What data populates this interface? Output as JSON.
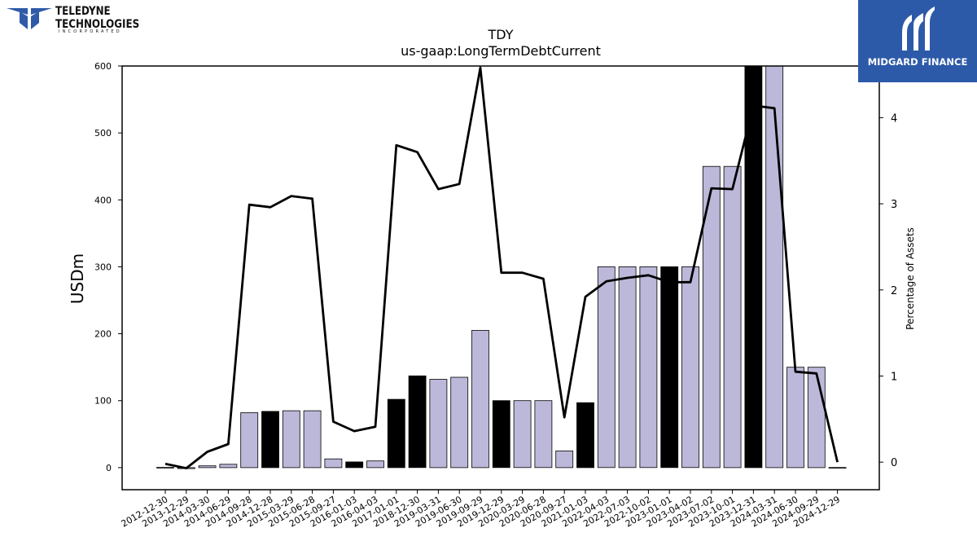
{
  "logos": {
    "teledyne_line1": "TELEDYNE",
    "teledyne_line2": "TECHNOLOGIES",
    "teledyne_sub": "INCORPORATED",
    "midgard_text": "MIDGARD FINANCE"
  },
  "chart_data": {
    "type": "bar",
    "title": "TDY",
    "subtitle": "us-gaap:LongTermDebtCurrent",
    "ylabel": "USDm",
    "y2label": "Percentage of Assets",
    "ylim": [
      -33,
      600
    ],
    "y2lim": [
      -0.32,
      4.6
    ],
    "yticks": [
      0,
      100,
      200,
      300,
      400,
      500,
      600
    ],
    "y2ticks": [
      0,
      1,
      2,
      3,
      4
    ],
    "grid": false,
    "categories": [
      "2012-12-30",
      "2013-12-29",
      "2014-03-30",
      "2014-06-29",
      "2014-09-28",
      "2014-12-28",
      "2015-03-29",
      "2015-06-28",
      "2015-09-27",
      "2016-01-03",
      "2016-04-03",
      "2017-01-01",
      "2018-12-30",
      "2019-03-31",
      "2019-06-30",
      "2019-09-29",
      "2019-12-29",
      "2020-03-29",
      "2020-06-28",
      "2020-09-27",
      "2021-01-03",
      "2022-04-03",
      "2022-07-03",
      "2022-10-02",
      "2023-01-01",
      "2023-04-02",
      "2023-07-02",
      "2023-10-01",
      "2023-12-31",
      "2024-03-31",
      "2024-06-30",
      "2024-09-29",
      "2024-12-29"
    ],
    "series": [
      {
        "type": "bar",
        "axis": "left",
        "values": [
          0.3,
          -1.5,
          2.7,
          5.0,
          82.0,
          84.0,
          85.0,
          85.0,
          13.0,
          8.5,
          10.0,
          102.0,
          137.0,
          132.0,
          135.0,
          205.0,
          100.0,
          100.0,
          100.0,
          25.0,
          97.0,
          300.0,
          300.0,
          300.0,
          300.0,
          300.0,
          450.0,
          450.0,
          600.0,
          600.0,
          150.0,
          150.0,
          0.2
        ],
        "highlight": [
          false,
          false,
          false,
          false,
          false,
          true,
          false,
          false,
          false,
          true,
          false,
          true,
          true,
          false,
          false,
          false,
          true,
          false,
          false,
          false,
          true,
          false,
          false,
          false,
          true,
          false,
          false,
          false,
          true,
          false,
          false,
          false,
          false
        ]
      },
      {
        "type": "line",
        "axis": "right",
        "values": [
          -0.02,
          -0.07,
          0.12,
          0.21,
          2.99,
          2.96,
          3.09,
          3.06,
          0.47,
          0.36,
          0.41,
          3.68,
          3.6,
          3.17,
          3.23,
          4.58,
          2.2,
          2.2,
          2.13,
          0.52,
          1.92,
          2.1,
          2.14,
          2.17,
          2.09,
          2.09,
          3.18,
          3.17,
          4.14,
          4.11,
          1.05,
          1.03,
          0.0
        ]
      }
    ],
    "colors": {
      "bar_fill": "#bcb8d9",
      "bar_highlight": "#000000",
      "bar_edge": "#000000",
      "line": "#000000",
      "midgard_bg": "#2d5aa8",
      "teledyne_blue": "#2f5aa8"
    }
  }
}
